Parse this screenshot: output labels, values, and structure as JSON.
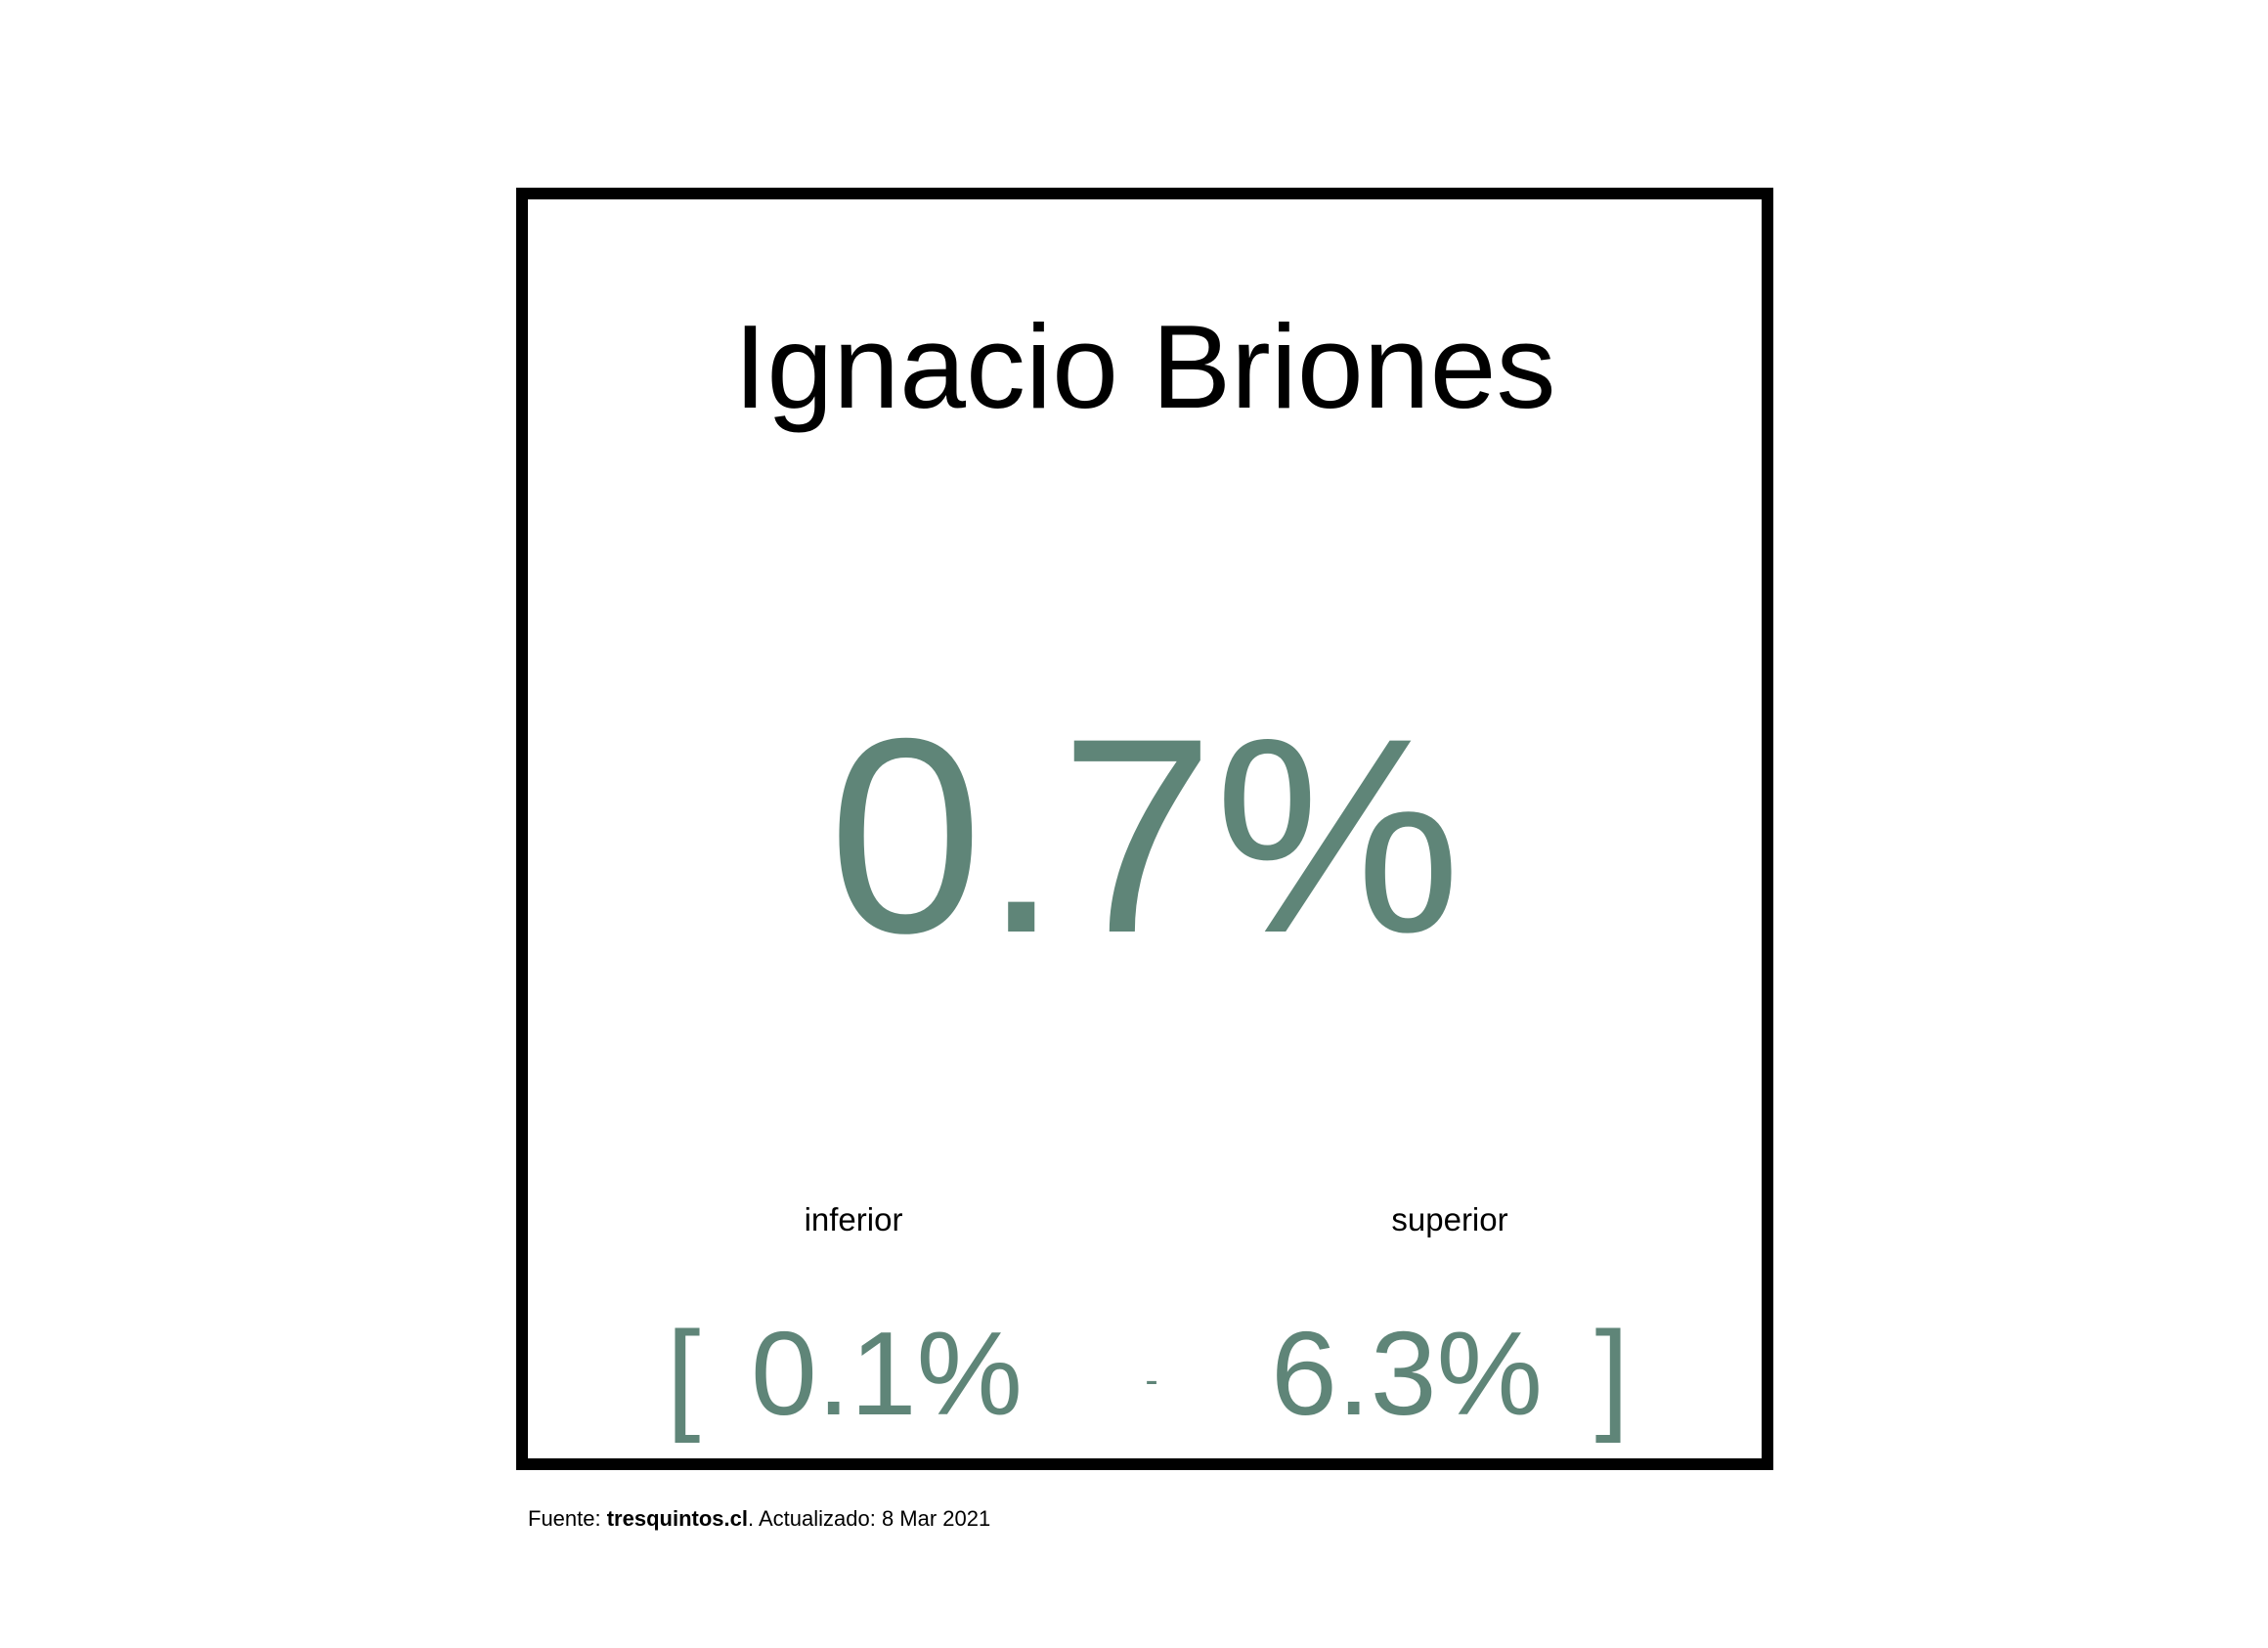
{
  "colors": {
    "accent": "#5f8578",
    "text": "#000000",
    "border": "#000000",
    "background": "#ffffff"
  },
  "chart_data": {
    "type": "table",
    "title": "Ignacio Briones",
    "estimate": "0.7%",
    "interval": {
      "open_bracket": "[",
      "close_bracket": "]",
      "separator": "-",
      "lower_label": "inferior",
      "lower_value": "0.1%",
      "upper_label": "superior",
      "upper_value": "6.3%"
    },
    "values": {
      "estimate": 0.7,
      "lower": 0.1,
      "upper": 6.3
    }
  },
  "footer": {
    "prefix": "Fuente: ",
    "source": "tresquintos.cl",
    "suffix": ". Actualizado: 8 Mar 2021"
  }
}
